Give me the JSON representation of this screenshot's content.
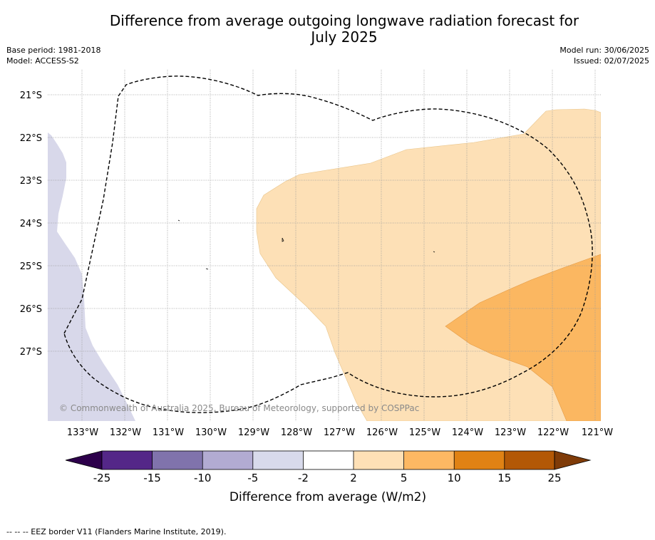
{
  "title": {
    "line1": "Difference from average outgoing longwave radiation forecast for",
    "line2": "July 2025"
  },
  "meta_left": {
    "base_period": "Base period: 1981-2018",
    "model": "Model: ACCESS-S2"
  },
  "meta_right": {
    "model_run": "Model run: 30/06/2025",
    "issued": "Issued: 02/07/2025"
  },
  "map": {
    "lat_labels": [
      "21°S",
      "22°S",
      "23°S",
      "24°S",
      "25°S",
      "26°S",
      "27°S"
    ],
    "lon_labels": [
      "133°W",
      "132°W",
      "131°W",
      "130°W",
      "129°W",
      "128°W",
      "127°W",
      "126°W",
      "125°W",
      "124°W",
      "123°W",
      "122°W",
      "121°W"
    ],
    "copyright": "© Commonwealth of Australia 2025, Bureau of Meteorology, supported by COSPPac",
    "colors": {
      "anomaly_neg_5_to_neg_2": "#d8d8ea",
      "anomaly_2_to_5": "#fde0b6",
      "anomaly_5_to_10": "#fbb761",
      "eez_border": "#000000"
    }
  },
  "colorbar": {
    "label": "Difference from average (W/m2)",
    "ticks": [
      "-25",
      "-15",
      "-10",
      "-5",
      "-2",
      "2",
      "5",
      "10",
      "15",
      "25"
    ],
    "colors": {
      "below_min": "#2d004b",
      "bins": [
        "#542788",
        "#8073ac",
        "#b2abd2",
        "#d8daeb",
        "#ffffff",
        "#fee0b6",
        "#fdb863",
        "#e08214",
        "#b35806"
      ],
      "above_max": "#7f3b08"
    }
  },
  "footer": "--  --  -- EEZ border V11 (Flanders Marine Institute, 2019)."
}
